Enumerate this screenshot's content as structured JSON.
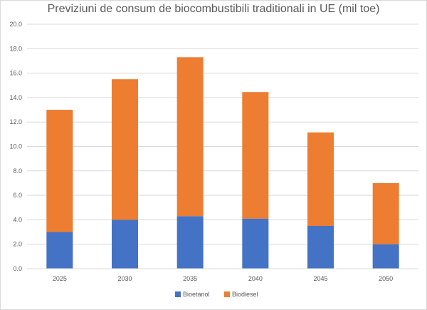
{
  "chart_data": {
    "type": "bar",
    "stacked": true,
    "title": "Previziuni de consum de biocombustibili traditionali in  UE (mil toe)",
    "xlabel": "",
    "ylabel": "",
    "categories": [
      "2025",
      "2030",
      "2035",
      "2040",
      "2045",
      "2050"
    ],
    "series": [
      {
        "name": "Bioetanol",
        "color": "#4472C4",
        "values": [
          3.0,
          4.0,
          4.3,
          4.1,
          3.5,
          2.0
        ]
      },
      {
        "name": "Biodiesel",
        "color": "#ED7D31",
        "values": [
          10.0,
          11.5,
          13.0,
          10.35,
          7.65,
          5.0
        ]
      }
    ],
    "ylim": [
      0,
      20
    ],
    "yticks": [
      "0.0",
      "2.0",
      "4.0",
      "6.0",
      "8.0",
      "10.0",
      "12.0",
      "14.0",
      "16.0",
      "18.0",
      "20.0"
    ],
    "grid": true,
    "legend_position": "bottom"
  }
}
